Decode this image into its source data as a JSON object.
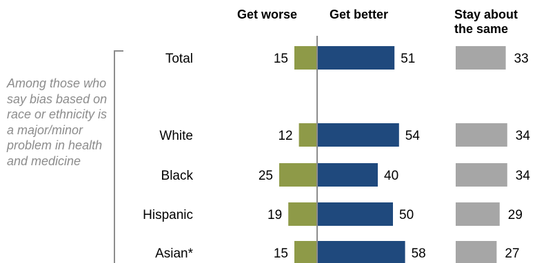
{
  "chart_data": {
    "type": "bar",
    "subtype": "diverging-bar-with-separate-column",
    "columns": [
      "Get worse",
      "Get better",
      "Stay about the same"
    ],
    "categories": [
      "Total",
      "White",
      "Black",
      "Hispanic",
      "Asian*"
    ],
    "series": [
      {
        "name": "Get worse",
        "values": [
          15,
          12,
          25,
          19,
          15
        ]
      },
      {
        "name": "Get better",
        "values": [
          51,
          54,
          40,
          50,
          58
        ]
      },
      {
        "name": "Stay about the same",
        "values": [
          33,
          34,
          34,
          29,
          27
        ]
      }
    ],
    "colors": {
      "worse": "#8e9a48",
      "better": "#1f497d",
      "same": "#a6a6a6",
      "axis": "#8c8c8c"
    },
    "side_note": "Among those who say bias based on race or ethnicity is a major/minor problem in health and medicine"
  }
}
